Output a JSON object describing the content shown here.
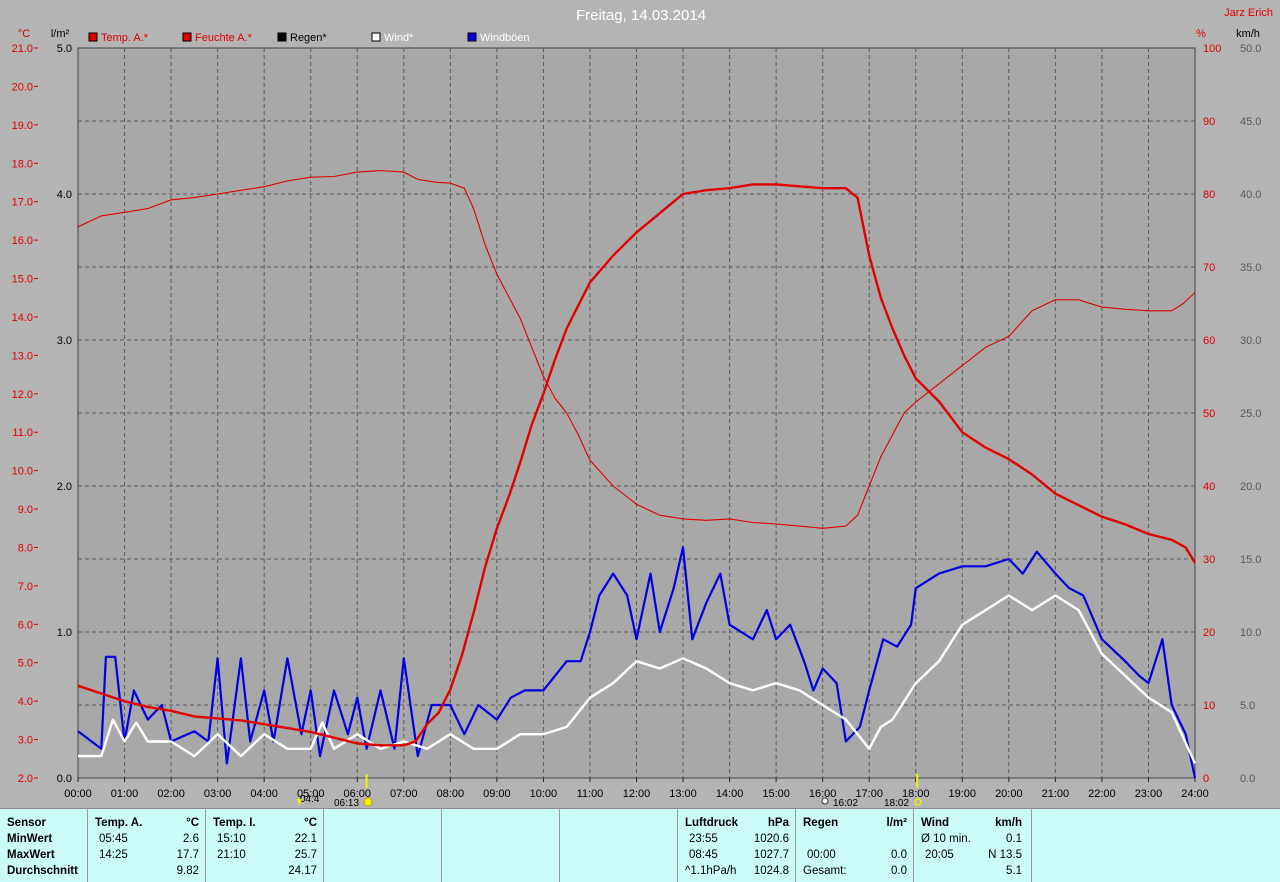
{
  "title": "Freitag, 14.03.2014",
  "station": "Jarz Erich",
  "units": {
    "temp": "°C",
    "rain": "l/m²",
    "humidity": "%",
    "wind": "km/h"
  },
  "legend": [
    {
      "label": "Temp. A.*",
      "color": "#e00000",
      "text_color": "#e00000"
    },
    {
      "label": "Feuchte A.*",
      "color": "#e00000",
      "text_color": "#e00000"
    },
    {
      "label": "Regen*",
      "color": "#000000",
      "text_color": "#000000"
    },
    {
      "label": "Wind*",
      "color": "#ffffff",
      "text_color": "#ffffff"
    },
    {
      "label": "Windböen",
      "color": "#0000e0",
      "text_color": "#ffffff"
    }
  ],
  "chart_data": {
    "type": "line",
    "x_ticks": [
      "00:00",
      "01:00",
      "02:00",
      "03:00",
      "04:00",
      "05:00",
      "06:00",
      "07:00",
      "08:00",
      "09:00",
      "10:00",
      "11:00",
      "12:00",
      "13:00",
      "14:00",
      "15:00",
      "16:00",
      "17:00",
      "18:00",
      "19:00",
      "20:00",
      "21:00",
      "22:00",
      "23:00",
      "24:00"
    ],
    "temp_ticks": [
      "21.0",
      "20.0",
      "19.0",
      "18.0",
      "17.0",
      "16.0",
      "15.0",
      "14.0",
      "13.0",
      "12.0",
      "11.0",
      "10.0",
      "9.0",
      "8.0",
      "7.0",
      "6.0",
      "5.0",
      "4.0",
      "3.0",
      "2.0"
    ],
    "rain_ticks": [
      "5.0",
      "4.0",
      "3.0",
      "2.0",
      "1.0",
      "0.0"
    ],
    "humidity_ticks": [
      "100",
      "90",
      "80",
      "70",
      "60",
      "50",
      "40",
      "30",
      "20",
      "10",
      "0"
    ],
    "wind_ticks": [
      "50.0",
      "45.0",
      "40.0",
      "35.0",
      "30.0",
      "25.0",
      "20.0",
      "15.0",
      "10.0",
      "5.0",
      "0.0"
    ],
    "ylim_temp": [
      2,
      21
    ],
    "ylim_humidity": [
      0,
      100
    ],
    "ylim_wind": [
      0,
      50
    ],
    "ylim_rain": [
      0,
      5
    ],
    "grid": true,
    "series": [
      {
        "name": "Temp. A.*",
        "axis": "temp",
        "color": "#e00000",
        "width": 2.4,
        "points": [
          [
            0,
            4.4
          ],
          [
            0.5,
            4.2
          ],
          [
            1,
            4.0
          ],
          [
            1.5,
            3.85
          ],
          [
            2,
            3.75
          ],
          [
            2.5,
            3.6
          ],
          [
            3,
            3.55
          ],
          [
            3.5,
            3.5
          ],
          [
            4,
            3.4
          ],
          [
            4.5,
            3.3
          ],
          [
            5,
            3.2
          ],
          [
            5.5,
            3.05
          ],
          [
            6,
            2.9
          ],
          [
            6.5,
            2.85
          ],
          [
            7,
            2.85
          ],
          [
            7.25,
            2.95
          ],
          [
            7.5,
            3.4
          ],
          [
            7.75,
            3.7
          ],
          [
            8,
            4.3
          ],
          [
            8.25,
            5.2
          ],
          [
            8.5,
            6.3
          ],
          [
            8.75,
            7.5
          ],
          [
            9,
            8.5
          ],
          [
            9.25,
            9.3
          ],
          [
            9.5,
            10.2
          ],
          [
            9.75,
            11.2
          ],
          [
            10,
            12.0
          ],
          [
            10.25,
            12.9
          ],
          [
            10.5,
            13.7
          ],
          [
            10.75,
            14.3
          ],
          [
            11,
            14.9
          ],
          [
            11.5,
            15.6
          ],
          [
            12,
            16.2
          ],
          [
            12.5,
            16.7
          ],
          [
            13,
            17.2
          ],
          [
            13.5,
            17.3
          ],
          [
            14,
            17.35
          ],
          [
            14.5,
            17.45
          ],
          [
            15,
            17.45
          ],
          [
            15.5,
            17.4
          ],
          [
            16,
            17.35
          ],
          [
            16.5,
            17.35
          ],
          [
            16.75,
            17.1
          ],
          [
            17,
            15.6
          ],
          [
            17.25,
            14.5
          ],
          [
            17.5,
            13.7
          ],
          [
            17.75,
            13.0
          ],
          [
            18,
            12.4
          ],
          [
            18.5,
            11.8
          ],
          [
            19,
            11.0
          ],
          [
            19.5,
            10.6
          ],
          [
            20,
            10.3
          ],
          [
            20.5,
            9.9
          ],
          [
            21,
            9.4
          ],
          [
            21.5,
            9.1
          ],
          [
            22,
            8.8
          ],
          [
            22.5,
            8.6
          ],
          [
            23,
            8.35
          ],
          [
            23.5,
            8.2
          ],
          [
            23.8,
            8.0
          ],
          [
            24,
            7.6
          ]
        ]
      },
      {
        "name": "Feuchte A.*",
        "axis": "humidity",
        "color": "#e00000",
        "width": 1.1,
        "points": [
          [
            0,
            75.5
          ],
          [
            0.5,
            77
          ],
          [
            1,
            77.5
          ],
          [
            1.5,
            78
          ],
          [
            2,
            79.2
          ],
          [
            2.5,
            79.5
          ],
          [
            3,
            80
          ],
          [
            3.5,
            80.5
          ],
          [
            4,
            81
          ],
          [
            4.5,
            81.8
          ],
          [
            5,
            82.3
          ],
          [
            5.5,
            82.4
          ],
          [
            6,
            83
          ],
          [
            6.5,
            83.2
          ],
          [
            7,
            83
          ],
          [
            7.3,
            82
          ],
          [
            7.7,
            81.6
          ],
          [
            8,
            81.5
          ],
          [
            8.3,
            80.8
          ],
          [
            8.5,
            78
          ],
          [
            8.75,
            73
          ],
          [
            9,
            69
          ],
          [
            9.25,
            66
          ],
          [
            9.5,
            63
          ],
          [
            9.75,
            59
          ],
          [
            10,
            55
          ],
          [
            10.25,
            52
          ],
          [
            10.5,
            50
          ],
          [
            10.75,
            47
          ],
          [
            11,
            43.5
          ],
          [
            11.5,
            40
          ],
          [
            12,
            37.5
          ],
          [
            12.5,
            36
          ],
          [
            13,
            35.5
          ],
          [
            13.5,
            35.3
          ],
          [
            14,
            35.5
          ],
          [
            14.5,
            35
          ],
          [
            15,
            34.8
          ],
          [
            15.5,
            34.5
          ],
          [
            16,
            34.2
          ],
          [
            16.5,
            34.5
          ],
          [
            16.75,
            36
          ],
          [
            17,
            40
          ],
          [
            17.25,
            44
          ],
          [
            17.5,
            47
          ],
          [
            17.75,
            50
          ],
          [
            18,
            51.5
          ],
          [
            18.5,
            54
          ],
          [
            19,
            56.5
          ],
          [
            19.5,
            59
          ],
          [
            20,
            60.5
          ],
          [
            20.5,
            64
          ],
          [
            21,
            65.5
          ],
          [
            21.5,
            65.5
          ],
          [
            22,
            64.5
          ],
          [
            22.5,
            64.2
          ],
          [
            23,
            64
          ],
          [
            23.5,
            64
          ],
          [
            23.75,
            65
          ],
          [
            24,
            66.5
          ]
        ]
      },
      {
        "name": "Wind*",
        "axis": "wind",
        "color": "#ffffff",
        "width": 2.4,
        "points": [
          [
            0,
            1.5
          ],
          [
            0.5,
            1.5
          ],
          [
            0.75,
            4
          ],
          [
            1,
            2.5
          ],
          [
            1.25,
            3.8
          ],
          [
            1.5,
            2.5
          ],
          [
            2,
            2.5
          ],
          [
            2.5,
            1.5
          ],
          [
            3,
            3
          ],
          [
            3.5,
            1.5
          ],
          [
            4,
            3
          ],
          [
            4.5,
            2
          ],
          [
            5,
            2
          ],
          [
            5.25,
            3.8
          ],
          [
            5.5,
            2
          ],
          [
            6,
            3
          ],
          [
            6.5,
            2
          ],
          [
            7,
            2.5
          ],
          [
            7.5,
            2
          ],
          [
            8,
            3
          ],
          [
            8.5,
            2
          ],
          [
            9,
            2
          ],
          [
            9.5,
            3
          ],
          [
            10,
            3
          ],
          [
            10.5,
            3.5
          ],
          [
            11,
            5.5
          ],
          [
            11.5,
            6.5
          ],
          [
            12,
            8
          ],
          [
            12.5,
            7.5
          ],
          [
            13,
            8.2
          ],
          [
            13.5,
            7.5
          ],
          [
            14,
            6.5
          ],
          [
            14.5,
            6
          ],
          [
            15,
            6.5
          ],
          [
            15.5,
            6
          ],
          [
            16,
            5
          ],
          [
            16.5,
            4
          ],
          [
            17,
            2
          ],
          [
            17.25,
            3.5
          ],
          [
            17.5,
            4
          ],
          [
            18,
            6.5
          ],
          [
            18.5,
            8
          ],
          [
            19,
            10.5
          ],
          [
            19.5,
            11.5
          ],
          [
            20,
            12.5
          ],
          [
            20.5,
            11.5
          ],
          [
            21,
            12.5
          ],
          [
            21.5,
            11.5
          ],
          [
            22,
            8.5
          ],
          [
            22.5,
            7
          ],
          [
            23,
            5.5
          ],
          [
            23.5,
            4.5
          ],
          [
            24,
            1
          ]
        ]
      },
      {
        "name": "Windböen",
        "axis": "wind",
        "color": "#0000e0",
        "width": 2.2,
        "points": [
          [
            0,
            3.2
          ],
          [
            0.5,
            2
          ],
          [
            0.6,
            8.3
          ],
          [
            0.8,
            8.3
          ],
          [
            1,
            2.5
          ],
          [
            1.2,
            6
          ],
          [
            1.5,
            4
          ],
          [
            1.8,
            5
          ],
          [
            2,
            2.5
          ],
          [
            2.5,
            3.2
          ],
          [
            2.8,
            2.5
          ],
          [
            3,
            8.2
          ],
          [
            3.2,
            1
          ],
          [
            3.5,
            8.2
          ],
          [
            3.7,
            2.5
          ],
          [
            4,
            6
          ],
          [
            4.2,
            2.5
          ],
          [
            4.5,
            8.2
          ],
          [
            4.8,
            3
          ],
          [
            5,
            6
          ],
          [
            5.2,
            1.5
          ],
          [
            5.5,
            6
          ],
          [
            5.8,
            3
          ],
          [
            6,
            5.5
          ],
          [
            6.2,
            2
          ],
          [
            6.5,
            6
          ],
          [
            6.8,
            2
          ],
          [
            7,
            8.2
          ],
          [
            7.3,
            1.5
          ],
          [
            7.6,
            5
          ],
          [
            8,
            5
          ],
          [
            8.3,
            3
          ],
          [
            8.6,
            5
          ],
          [
            9,
            4
          ],
          [
            9.3,
            5.5
          ],
          [
            9.6,
            6
          ],
          [
            10,
            6
          ],
          [
            10.5,
            8
          ],
          [
            10.8,
            8
          ],
          [
            11,
            10
          ],
          [
            11.2,
            12.5
          ],
          [
            11.5,
            14
          ],
          [
            11.8,
            12.5
          ],
          [
            12,
            9.5
          ],
          [
            12.3,
            14
          ],
          [
            12.5,
            10
          ],
          [
            12.8,
            13
          ],
          [
            13,
            15.8
          ],
          [
            13.2,
            9.5
          ],
          [
            13.5,
            12
          ],
          [
            13.8,
            14
          ],
          [
            14,
            10.5
          ],
          [
            14.5,
            9.5
          ],
          [
            14.8,
            11.5
          ],
          [
            15,
            9.5
          ],
          [
            15.3,
            10.5
          ],
          [
            15.6,
            8
          ],
          [
            15.8,
            6
          ],
          [
            16,
            7.5
          ],
          [
            16.3,
            6.5
          ],
          [
            16.5,
            2.5
          ],
          [
            16.8,
            3.5
          ],
          [
            17,
            6
          ],
          [
            17.3,
            9.5
          ],
          [
            17.6,
            9
          ],
          [
            17.9,
            10.5
          ],
          [
            18,
            13
          ],
          [
            18.5,
            14
          ],
          [
            19,
            14.5
          ],
          [
            19.5,
            14.5
          ],
          [
            20,
            15
          ],
          [
            20.3,
            14
          ],
          [
            20.6,
            15.5
          ],
          [
            21,
            14
          ],
          [
            21.3,
            13
          ],
          [
            21.6,
            12.5
          ],
          [
            22,
            9.5
          ],
          [
            22.5,
            8
          ],
          [
            22.8,
            7
          ],
          [
            23,
            6.5
          ],
          [
            23.3,
            9.5
          ],
          [
            23.5,
            5
          ],
          [
            23.8,
            3
          ],
          [
            24,
            0
          ]
        ]
      }
    ],
    "markers": [
      {
        "x_hour": 6.2,
        "type": "sunrise"
      },
      {
        "x_hour": 18.03,
        "type": "sunset"
      }
    ]
  },
  "bottom_axis": {
    "moon_rise": "04:4",
    "sun_rise": "06:13",
    "moon_set": "16:02",
    "sun_set": "18:02"
  },
  "stats": {
    "sensor": {
      "header": "Sensor",
      "rows": [
        "MinWert",
        "MaxWert",
        "Durchschnitt"
      ]
    },
    "temp_a": {
      "header": "Temp. A.",
      "unit": "°C",
      "rows": [
        {
          "time": "05:45",
          "value": "2.6"
        },
        {
          "time": "14:25",
          "value": "17.7"
        },
        {
          "time": "",
          "value": "9.82"
        }
      ]
    },
    "temp_i": {
      "header": "Temp. I.",
      "unit": "°C",
      "rows": [
        {
          "time": "15:10",
          "value": "22.1"
        },
        {
          "time": "21:10",
          "value": "25.7"
        },
        {
          "time": "",
          "value": "24.17"
        }
      ]
    },
    "pressure": {
      "header": "Luftdruck",
      "unit": "hPa",
      "rows": [
        {
          "time": "23:55",
          "value": "1020.6"
        },
        {
          "time": "08:45",
          "value": "1027.7"
        },
        {
          "time": "^1.1hPa/h",
          "value": "1024.8"
        }
      ]
    },
    "rain": {
      "header": "Regen",
      "unit": "l/m²",
      "rows": [
        {
          "time": "",
          "value": ""
        },
        {
          "time": "00:00",
          "value": "0.0"
        },
        {
          "time": "Gesamt:",
          "value": "0.0"
        }
      ]
    },
    "wind": {
      "header": "Wind",
      "unit": "km/h",
      "rows": [
        {
          "time": "Ø 10 min.",
          "value": "0.1"
        },
        {
          "time": "20:05",
          "value": "N 13.5"
        },
        {
          "time": "",
          "value": "5.1"
        }
      ]
    }
  }
}
